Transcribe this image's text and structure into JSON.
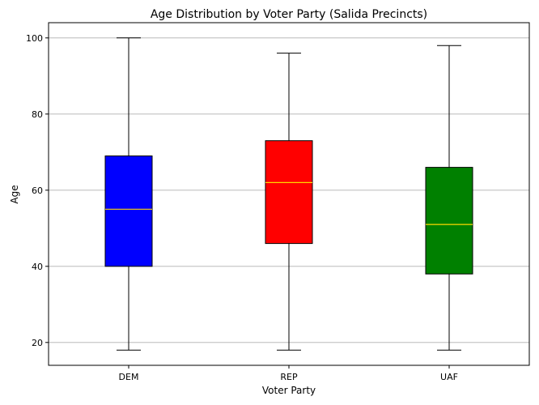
{
  "chart_data": {
    "type": "box",
    "title": "Age Distribution by Voter Party (Salida Precincts)",
    "xlabel": "Voter Party",
    "ylabel": "Age",
    "ylim": [
      14,
      104
    ],
    "yticks": [
      20,
      40,
      60,
      80,
      100
    ],
    "grid": "y",
    "categories": [
      "DEM",
      "REP",
      "UAF"
    ],
    "boxes": [
      {
        "category": "DEM",
        "min": 18,
        "q1": 40,
        "median": 55,
        "q3": 69,
        "max": 100,
        "color": "#0000ff"
      },
      {
        "category": "REP",
        "min": 18,
        "q1": 46,
        "median": 62,
        "q3": 73,
        "max": 96,
        "color": "#ff0000"
      },
      {
        "category": "UAF",
        "min": 18,
        "q1": 38,
        "median": 51,
        "q3": 66,
        "max": 98,
        "color": "#008000"
      }
    ],
    "median_color": "#ffd700"
  }
}
